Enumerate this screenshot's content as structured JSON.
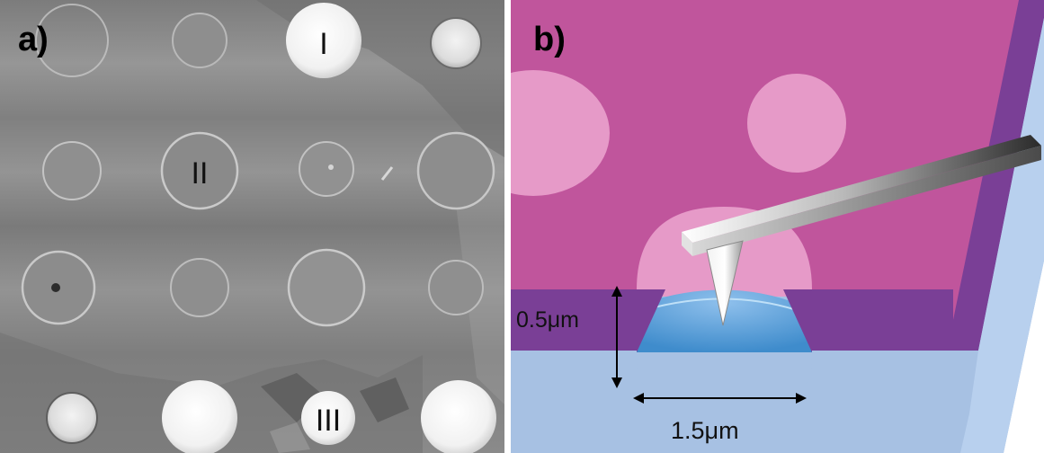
{
  "panel_a": {
    "label": "a)",
    "markers": [
      "I",
      "II",
      "III"
    ]
  },
  "panel_b": {
    "label": "b)",
    "depth_label": "0.5μm",
    "width_label": "1.5μm"
  },
  "colors": {
    "sem_gray": "#848484",
    "well_rim": "#c8c8c8",
    "bright_disc": "#f6f6f6",
    "magenta_surface": "#c0559c",
    "pink_disc": "#e69ac8",
    "purple_wall": "#7a3f96",
    "light_blue_substrate": "#a7c1e3",
    "blue_meniscus": "#4f9bd6",
    "cantilever_gray": "#9a9a9a"
  }
}
